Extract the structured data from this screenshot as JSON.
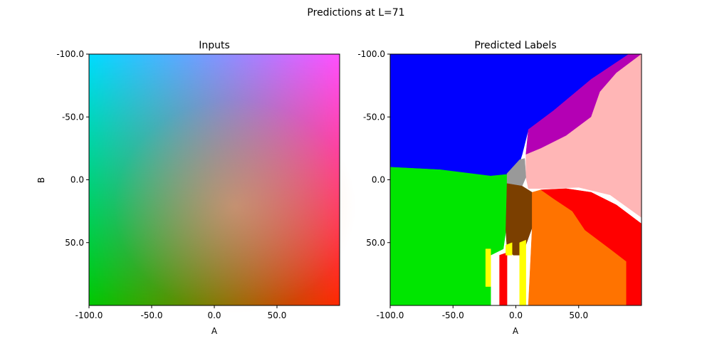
{
  "figure": {
    "title": "Predictions at L=71"
  },
  "chart_data": [
    {
      "type": "heatmap",
      "title": "Inputs",
      "xlabel": "A",
      "ylabel": "B",
      "xlim": [
        -100,
        100
      ],
      "ylim": [
        -100,
        100
      ],
      "y_inverted": true,
      "xticks": [
        -100,
        -50,
        0,
        50
      ],
      "xtick_labels": [
        "-100.0",
        "-50.0",
        "0.0",
        "50.0"
      ],
      "yticks": [
        -100,
        -50,
        0,
        50
      ],
      "ytick_labels": [
        "-100.0",
        "-50.0",
        "0.0",
        "50.0"
      ],
      "color_encoding": "Lab color at L=71 for each (A, B)",
      "corner_colors": {
        "A-100_B-100": "#00dcff",
        "A100_B-100": "#ff50ff",
        "A-100_B100": "#00c800",
        "A100_B100": "#ff2800"
      },
      "grid": false
    },
    {
      "type": "heatmap",
      "title": "Predicted Labels",
      "xlabel": "A",
      "ylabel": "",
      "xlim": [
        -100,
        100
      ],
      "ylim": [
        -100,
        100
      ],
      "y_inverted": true,
      "xticks": [
        -100,
        -50,
        0,
        50
      ],
      "xtick_labels": [
        "-100.0",
        "-50.0",
        "0.0",
        "50.0"
      ],
      "yticks": [
        -100,
        -50,
        0,
        50
      ],
      "ytick_labels": [
        "-100.0",
        "-50.0",
        "0.0",
        "50.0"
      ],
      "label_colors": {
        "blue": "#0000ff",
        "purple": "#b400b4",
        "pink": "#ffb6b6",
        "green": "#00e600",
        "gray": "#999999",
        "brown": "#7b3f00",
        "orange": "#ff7300",
        "red": "#ff0000",
        "yellow": "#ffff00"
      },
      "regions": [
        {
          "label": "blue",
          "polygon": [
            [
              -100,
              -100
            ],
            [
              90,
              -100
            ],
            [
              60,
              -80
            ],
            [
              30,
              -55
            ],
            [
              10,
              -40
            ],
            [
              5,
              -20
            ],
            [
              0,
              -5
            ],
            [
              -20,
              -3
            ],
            [
              -60,
              -8
            ],
            [
              -100,
              -10
            ]
          ]
        },
        {
          "label": "purple",
          "polygon": [
            [
              90,
              -100
            ],
            [
              100,
              -100
            ],
            [
              80,
              -85
            ],
            [
              67,
              -70
            ],
            [
              60,
              -50
            ],
            [
              40,
              -35
            ],
            [
              20,
              -25
            ],
            [
              8,
              -20
            ],
            [
              10,
              -40
            ],
            [
              30,
              -55
            ],
            [
              60,
              -80
            ]
          ]
        },
        {
          "label": "pink",
          "polygon": [
            [
              100,
              -100
            ],
            [
              100,
              30
            ],
            [
              75,
              12
            ],
            [
              50,
              6
            ],
            [
              25,
              7
            ],
            [
              10,
              7
            ],
            [
              8,
              -2
            ],
            [
              8,
              -20
            ],
            [
              20,
              -25
            ],
            [
              40,
              -35
            ],
            [
              60,
              -50
            ],
            [
              67,
              -70
            ],
            [
              80,
              -85
            ]
          ]
        },
        {
          "label": "green",
          "polygon": [
            [
              -100,
              -10
            ],
            [
              -60,
              -8
            ],
            [
              -20,
              -3
            ],
            [
              0,
              -5
            ],
            [
              -2,
              5
            ],
            [
              -5,
              20
            ],
            [
              -10,
              55
            ],
            [
              -20,
              60
            ],
            [
              -20,
              100
            ],
            [
              -100,
              100
            ]
          ]
        },
        {
          "label": "gray",
          "polygon": [
            [
              -7,
              -5
            ],
            [
              3,
              -16
            ],
            [
              7,
              -17
            ],
            [
              8,
              -2
            ],
            [
              5,
              5
            ],
            [
              -7,
              3
            ]
          ]
        },
        {
          "label": "brown",
          "polygon": [
            [
              -7,
              3
            ],
            [
              5,
              5
            ],
            [
              13,
              10
            ],
            [
              13,
              38
            ],
            [
              5,
              60
            ],
            [
              -2,
              60
            ],
            [
              -7,
              55
            ],
            [
              -8,
              40
            ]
          ]
        },
        {
          "label": "orange",
          "polygon": [
            [
              13,
              10
            ],
            [
              20,
              8
            ],
            [
              30,
              15
            ],
            [
              45,
              25
            ],
            [
              55,
              40
            ],
            [
              75,
              55
            ],
            [
              88,
              65
            ],
            [
              88,
              100
            ],
            [
              10,
              100
            ],
            [
              13,
              38
            ]
          ]
        },
        {
          "label": "red",
          "polygon": [
            [
              20,
              8
            ],
            [
              40,
              7
            ],
            [
              60,
              10
            ],
            [
              80,
              20
            ],
            [
              100,
              35
            ],
            [
              100,
              100
            ],
            [
              88,
              100
            ],
            [
              88,
              65
            ],
            [
              75,
              55
            ],
            [
              55,
              40
            ],
            [
              45,
              25
            ],
            [
              30,
              15
            ]
          ]
        },
        {
          "label": "red",
          "polygon": [
            [
              -13,
              60
            ],
            [
              -7,
              58
            ],
            [
              -7,
              100
            ],
            [
              -13,
              100
            ]
          ]
        },
        {
          "label": "yellow",
          "polygon": [
            [
              3,
              50
            ],
            [
              8,
              48
            ],
            [
              8,
              100
            ],
            [
              3,
              100
            ]
          ]
        },
        {
          "label": "yellow",
          "polygon": [
            [
              -24,
              55
            ],
            [
              -20,
              55
            ],
            [
              -20,
              85
            ],
            [
              -24,
              85
            ]
          ]
        },
        {
          "label": "yellow",
          "polygon": [
            [
              -8,
              52
            ],
            [
              -3,
              50
            ],
            [
              -3,
              60
            ],
            [
              -8,
              60
            ]
          ]
        }
      ],
      "grid": false
    }
  ]
}
